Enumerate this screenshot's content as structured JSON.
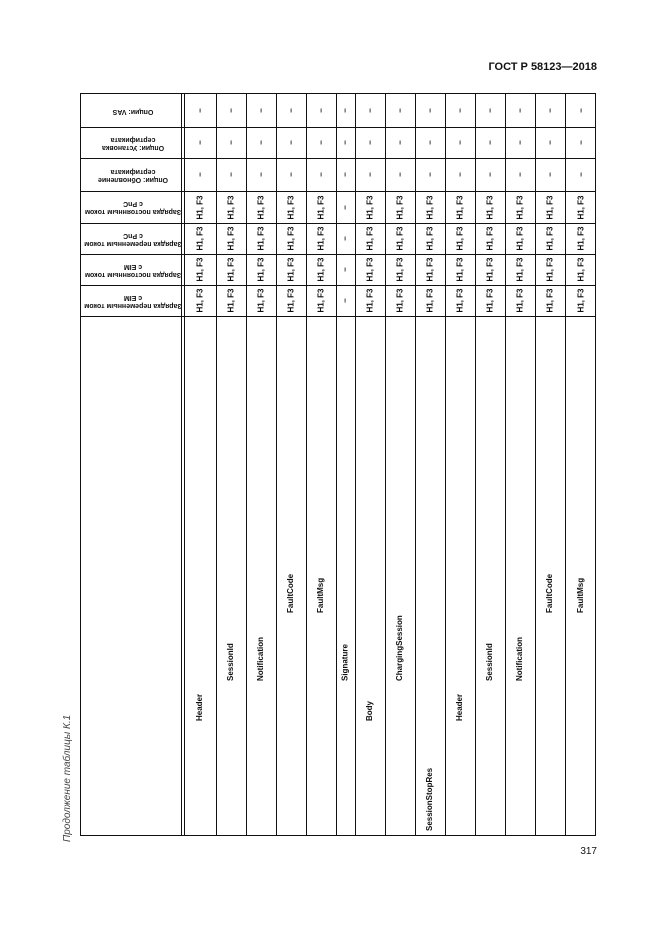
{
  "document_code": "ГОСТ Р 58123—2018",
  "caption": "Продолжение таблицы К.1",
  "page_number": "317",
  "table": {
    "header_rows": [
      "Зарядка переменным током с EIM",
      "Зарядка постоянным током с EIM",
      "Зарядка переменным током с PnC",
      "Зарядка постоянным током с PnC",
      "Опции: Обновление сертификата",
      "Опции: Установка сертификата",
      "Опции: VAS"
    ],
    "columns": [
      {
        "name": "Header",
        "level": 2,
        "values": [
          "H1, F3",
          "H1, F3",
          "H1, F3",
          "H1, F3",
          "–",
          "–",
          "–"
        ]
      },
      {
        "name": "SessionId",
        "level": 3,
        "values": [
          "H1, F3",
          "H1, F3",
          "H1, F3",
          "H1, F3",
          "–",
          "–",
          "–"
        ]
      },
      {
        "name": "Notification",
        "level": 3,
        "values": [
          "H1, F3",
          "H1, F3",
          "H1, F3",
          "H1, F3",
          "–",
          "–",
          "–"
        ]
      },
      {
        "name": "FaultCode",
        "level": 4,
        "values": [
          "H1, F3",
          "H1, F3",
          "H1, F3",
          "H1, F3",
          "–",
          "–",
          "–"
        ]
      },
      {
        "name": "FaultMsg",
        "level": 4,
        "values": [
          "H1, F3",
          "H1, F3",
          "H1, F3",
          "H1, F3",
          "–",
          "–",
          "–"
        ]
      },
      {
        "name": "Signature",
        "level": 3,
        "values": [
          "–",
          "–",
          "–",
          "–",
          "–",
          "–",
          "–"
        ]
      },
      {
        "name": "Body",
        "level": 2,
        "values": [
          "H1, F3",
          "H1, F3",
          "H1, F3",
          "H1, F3",
          "–",
          "–",
          "–"
        ]
      },
      {
        "name": "ChargingSession",
        "level": 3,
        "values": [
          "H1, F3",
          "H1, F3",
          "H1, F3",
          "H1, F3",
          "–",
          "–",
          "–"
        ]
      },
      {
        "name": "SessionStopRes",
        "level": 1,
        "values": [
          "H1, F3",
          "H1, F3",
          "H1, F3",
          "H1, F3",
          "–",
          "–",
          "–"
        ]
      },
      {
        "name": "Header",
        "level": 2,
        "values": [
          "H1, F3",
          "H1, F3",
          "H1, F3",
          "H1, F3",
          "–",
          "–",
          "–"
        ]
      },
      {
        "name": "SessionId",
        "level": 3,
        "values": [
          "H1, F3",
          "H1, F3",
          "H1, F3",
          "H1, F3",
          "–",
          "–",
          "–"
        ]
      },
      {
        "name": "Notification",
        "level": 3,
        "values": [
          "H1, F3",
          "H1, F3",
          "H1, F3",
          "H1, F3",
          "–",
          "–",
          "–"
        ]
      },
      {
        "name": "FaultCode",
        "level": 4,
        "values": [
          "H1, F3",
          "H1, F3",
          "H1, F3",
          "H1, F3",
          "–",
          "–",
          "–"
        ]
      },
      {
        "name": "FaultMsg",
        "level": 4,
        "values": [
          "H1, F3",
          "H1, F3",
          "H1, F3",
          "H1, F3",
          "–",
          "–",
          "–"
        ]
      }
    ]
  }
}
